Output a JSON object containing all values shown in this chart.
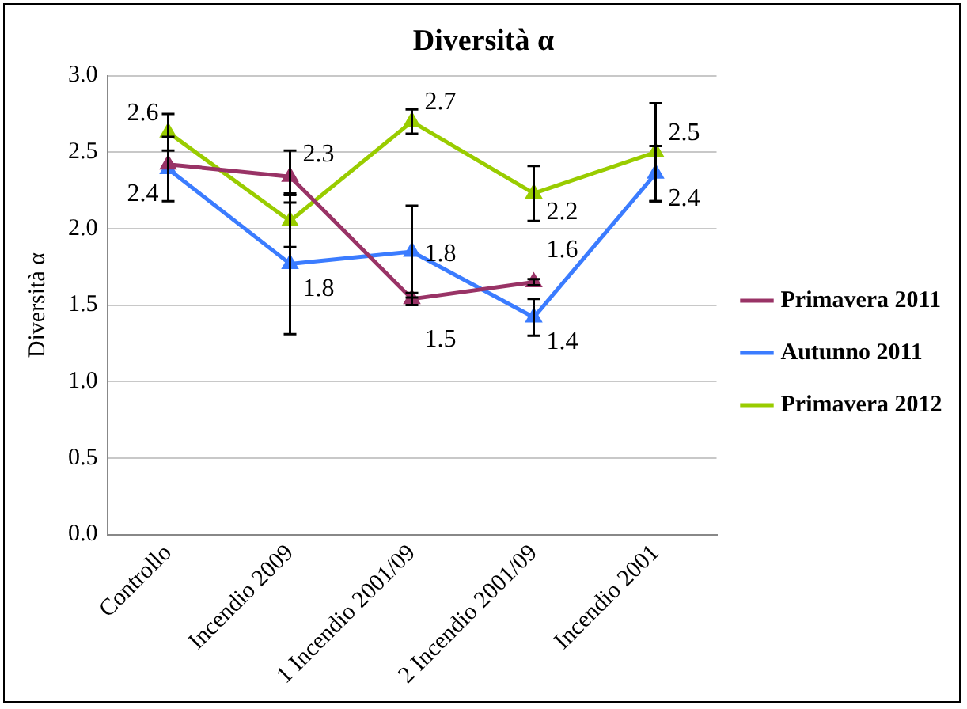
{
  "chart_data": {
    "type": "line",
    "title": "Diversità α",
    "ylabel": "Diversità α",
    "categories": [
      "Controllo",
      "Incendio 2009",
      "1 Incendio 2001/09",
      "2 Incendio 2001/09",
      "Incendio 2001"
    ],
    "series": [
      {
        "name": "Primavera 2011",
        "color": "#993366",
        "values": [
          2.42,
          2.34,
          1.54,
          1.65,
          null
        ],
        "errors": [
          null,
          0.17,
          0.04,
          0.02,
          null
        ],
        "value_labels": [
          null,
          "2.3",
          "1.5",
          "1.6",
          null
        ]
      },
      {
        "name": "Autunno 2011",
        "color": "#3b7cff",
        "values": [
          2.39,
          1.77,
          1.85,
          1.42,
          2.36
        ],
        "errors": [
          0.21,
          0.46,
          0.3,
          0.12,
          0.18
        ],
        "value_labels": [
          "2.4",
          "1.8",
          "1.8",
          "1.4",
          "2.4"
        ]
      },
      {
        "name": "Primavera 2012",
        "color": "#99cc00",
        "values": [
          2.63,
          2.05,
          2.7,
          2.23,
          2.5
        ],
        "errors": [
          0.12,
          0.17,
          0.08,
          0.18,
          0.32
        ],
        "value_labels": [
          "2.6",
          null,
          "2.7",
          "2.2",
          "2.5"
        ]
      }
    ],
    "ylim": [
      0,
      3
    ],
    "yticks": [
      {
        "value": 0,
        "label": "0.0"
      },
      {
        "value": 0.5,
        "label": "0.5"
      },
      {
        "value": 1,
        "label": "1.0"
      },
      {
        "value": 1.5,
        "label": "1.5"
      },
      {
        "value": 2,
        "label": "2.0"
      },
      {
        "value": 2.5,
        "label": "2.5"
      },
      {
        "value": 3,
        "label": "3.0"
      }
    ],
    "grid": "y",
    "legend": "right",
    "marker": "triangle",
    "line_style": "solid"
  }
}
